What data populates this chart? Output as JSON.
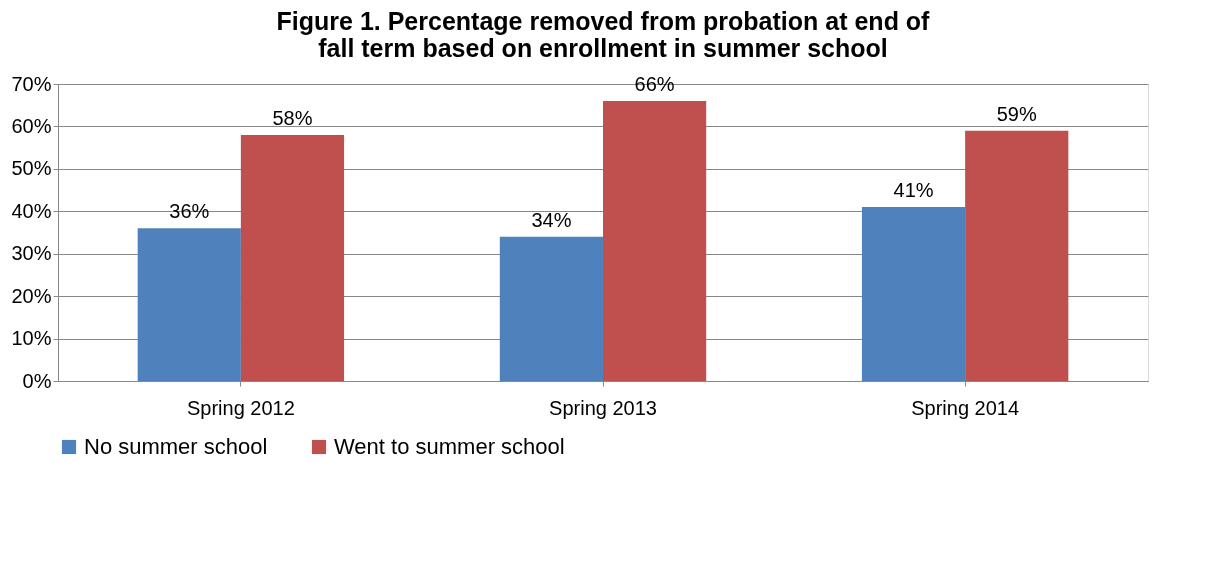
{
  "chart_data": {
    "type": "bar",
    "title": "Figure 1. Percentage removed from probation at end of fall term based on enrollment in summer school",
    "categories": [
      "Spring 2012",
      "Spring 2013",
      "Spring 2014"
    ],
    "series": [
      {
        "name": "No summer school",
        "color": "#4f81bd",
        "values": [
          36,
          34,
          41
        ],
        "value_labels": [
          "36%",
          "34%",
          "41%"
        ]
      },
      {
        "name": "Went to summer school",
        "color": "#c0504d",
        "values": [
          58,
          66,
          59
        ],
        "value_labels": [
          "58%",
          "66%",
          "59%"
        ]
      }
    ],
    "ylim": [
      0,
      70
    ],
    "yticks": [
      {
        "value": 0,
        "label": "0%"
      },
      {
        "value": 10,
        "label": "10%"
      },
      {
        "value": 20,
        "label": "20%"
      },
      {
        "value": 30,
        "label": "30%"
      },
      {
        "value": 40,
        "label": "40%"
      },
      {
        "value": 50,
        "label": "50%"
      },
      {
        "value": 60,
        "label": "60%"
      },
      {
        "value": 70,
        "label": "70%"
      }
    ],
    "grid": "y",
    "legend": "bottom"
  }
}
